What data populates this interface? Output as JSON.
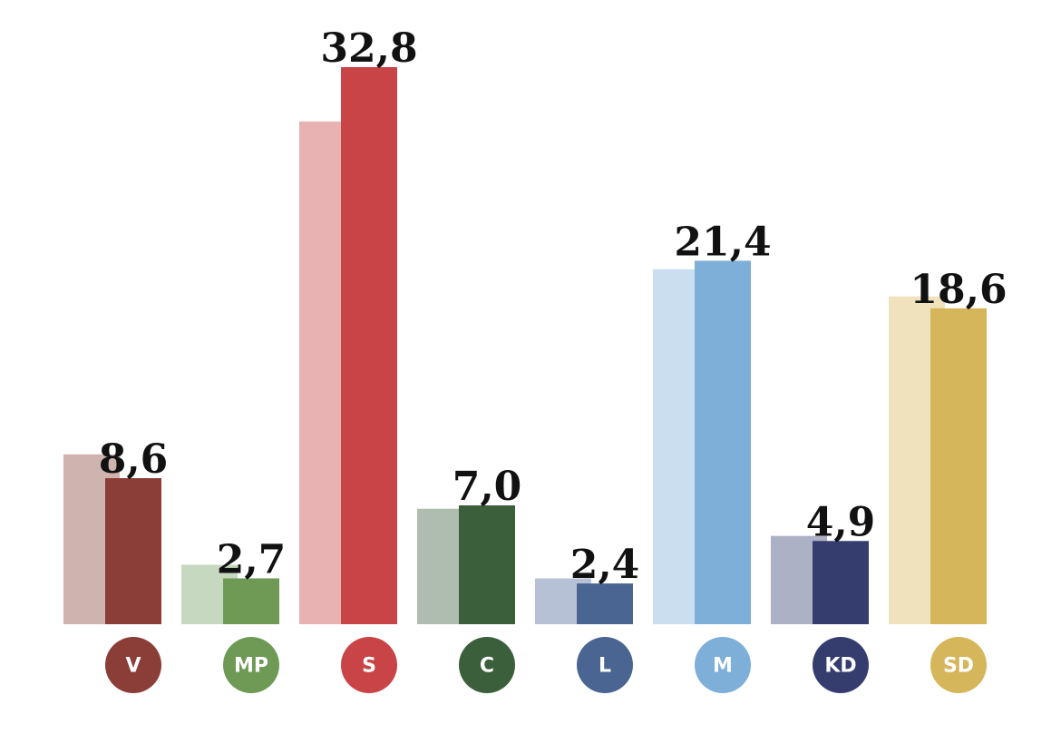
{
  "chart_data": {
    "type": "bar",
    "categories": [
      "V",
      "MP",
      "S",
      "C",
      "L",
      "M",
      "KD",
      "SD"
    ],
    "series": [
      {
        "colors": [
          "#cfb3ae",
          "#c6d8bf",
          "#e8b2b3",
          "#aebdaf",
          "#b7c1d6",
          "#cbdef0",
          "#adb1c6",
          "#f0e2bd"
        ],
        "values": [
          10.0,
          3.5,
          29.6,
          6.8,
          2.7,
          20.9,
          5.2,
          19.3
        ]
      },
      {
        "colors": [
          "#8b3d38",
          "#6e9a56",
          "#c94446",
          "#3a5f3a",
          "#4a6592",
          "#7eafd8",
          "#343d6e",
          "#d5b65a"
        ],
        "values": [
          8.6,
          2.7,
          32.8,
          7.0,
          2.4,
          21.4,
          4.9,
          18.6
        ],
        "value_labels": [
          "8,6",
          "2,7",
          "32,8",
          "7,0",
          "2,4",
          "21,4",
          "4,9",
          "18,6"
        ]
      }
    ]
  }
}
